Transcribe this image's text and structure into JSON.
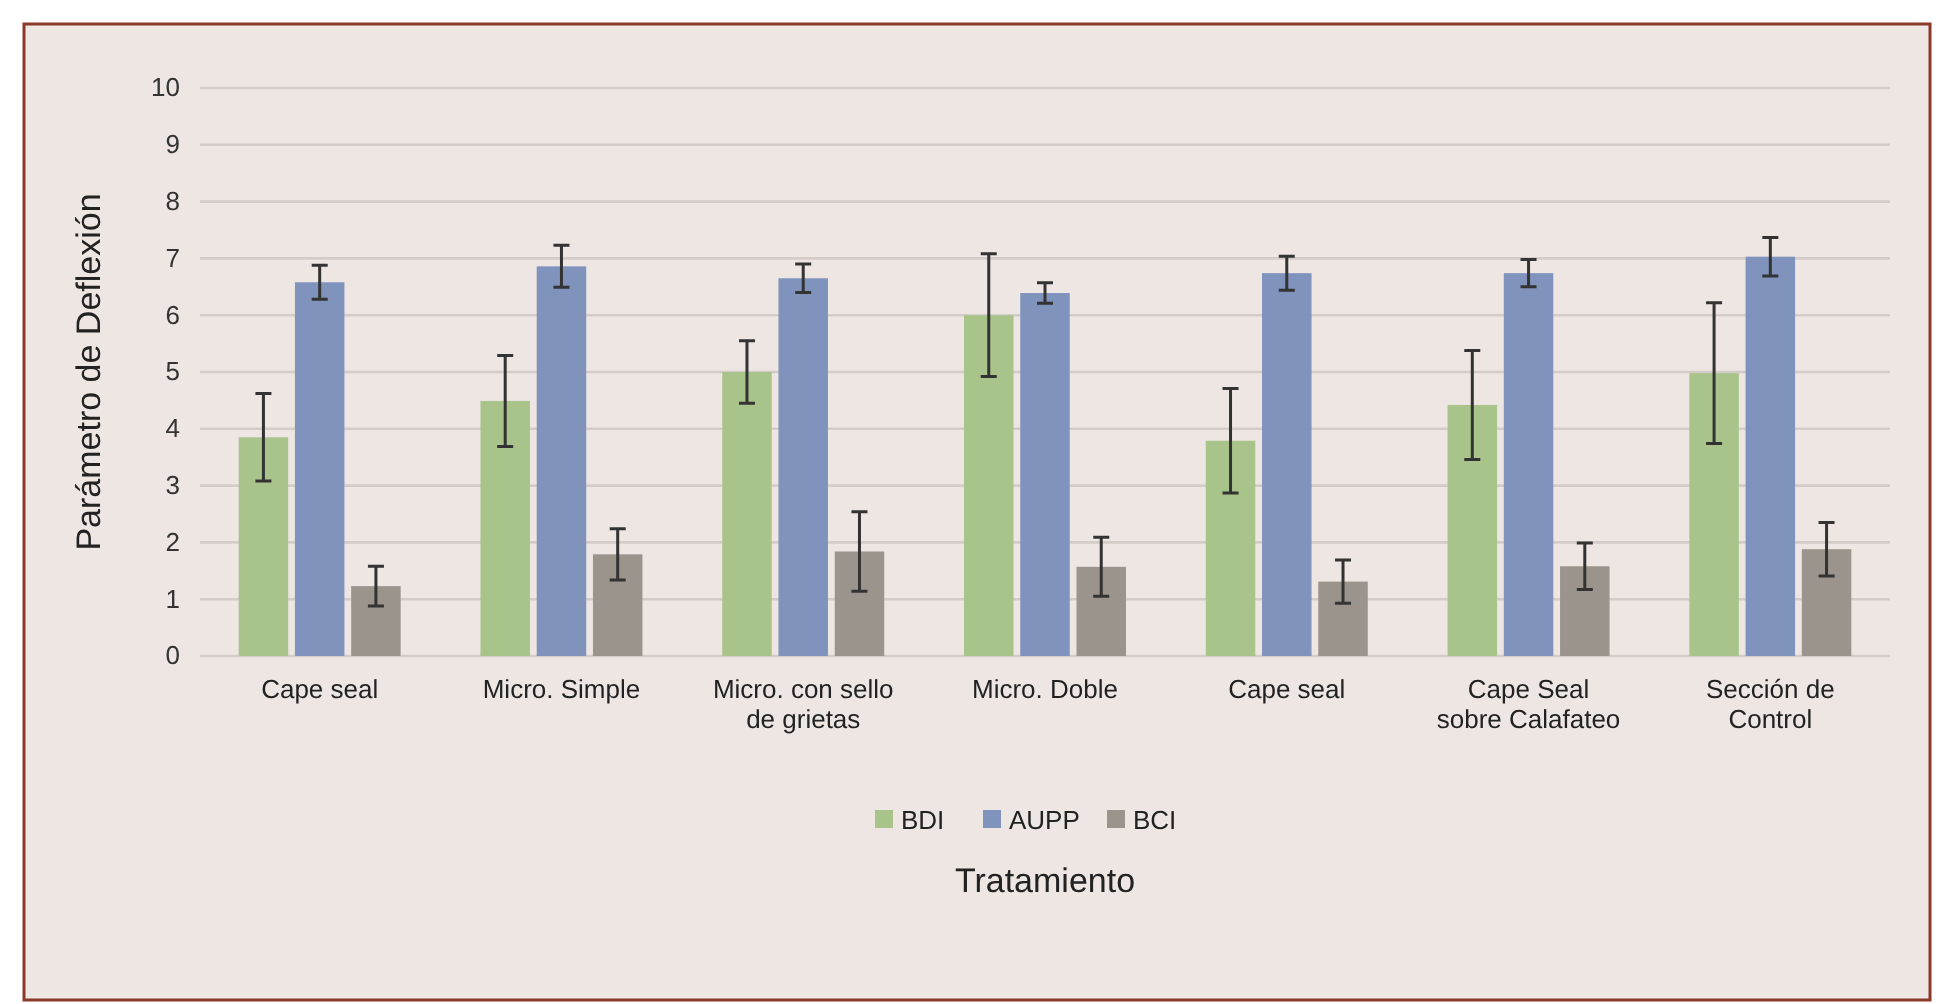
{
  "chart_data": {
    "type": "bar",
    "xlabel": "Tratamiento",
    "ylabel": "Parámetro de Deflexión",
    "categories": [
      "Cape seal",
      "Micro. Simple",
      "Micro. con sello de grietas",
      "Micro. Doble",
      "Cape seal",
      "Cape Seal sobre Calafateo",
      "Sección de Control"
    ],
    "series": [
      {
        "name": "BDI",
        "color": "#a9c48a",
        "values": [
          3.85,
          4.49,
          5.0,
          6.0,
          3.79,
          4.42,
          4.98
        ],
        "errors": [
          0.77,
          0.8,
          0.55,
          1.08,
          0.92,
          0.96,
          1.24
        ]
      },
      {
        "name": "AUPP",
        "color": "#7f93bd",
        "values": [
          6.58,
          6.86,
          6.65,
          6.39,
          6.74,
          6.74,
          7.03
        ],
        "errors": [
          0.3,
          0.37,
          0.25,
          0.18,
          0.3,
          0.24,
          0.34
        ]
      },
      {
        "name": "BCI",
        "color": "#9a948c",
        "values": [
          1.23,
          1.79,
          1.84,
          1.57,
          1.31,
          1.58,
          1.88
        ],
        "errors": [
          0.35,
          0.45,
          0.7,
          0.52,
          0.38,
          0.41,
          0.47
        ]
      }
    ],
    "ylim": [
      0,
      10
    ],
    "yticks": [
      0,
      1,
      2,
      3,
      4,
      5,
      6,
      7,
      8,
      9,
      10
    ],
    "grid": "y",
    "legend": "bottom"
  }
}
